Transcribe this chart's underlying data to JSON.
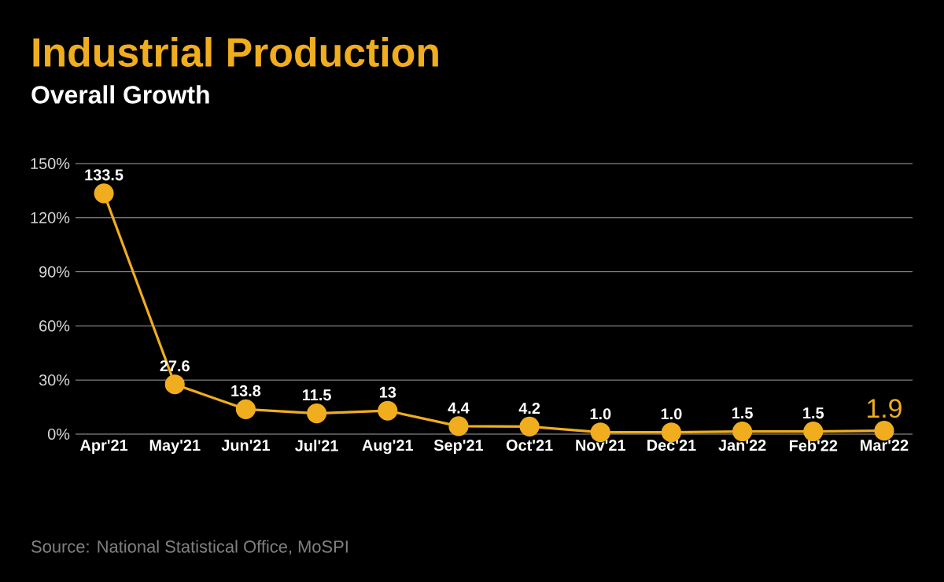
{
  "chart_data": {
    "type": "line",
    "title": "Industrial Production",
    "subtitle": "Overall Growth",
    "categories": [
      "Apr'21",
      "May'21",
      "Jun'21",
      "Jul'21",
      "Aug'21",
      "Sep'21",
      "Oct'21",
      "Nov'21",
      "Dec'21",
      "Jan'22",
      "Feb'22",
      "Mar'22"
    ],
    "series": [
      {
        "color": "#f0ad1e",
        "values": [
          133.5,
          27.6,
          13.8,
          11.5,
          13,
          4.4,
          4.2,
          1.0,
          1.0,
          1.5,
          1.5,
          1.9
        ],
        "value_labels": [
          "133.5",
          "27.6",
          "13.8",
          "11.5",
          "13",
          "4.4",
          "4.2",
          "1.0",
          "1.0",
          "1.5",
          "1.5",
          "1.9"
        ]
      }
    ],
    "ylim": [
      0,
      150
    ],
    "yticks": [
      {
        "value": 0,
        "label": "0%"
      },
      {
        "value": 30,
        "label": "30%"
      },
      {
        "value": 60,
        "label": "60%"
      },
      {
        "value": 90,
        "label": "90%"
      },
      {
        "value": 120,
        "label": "120%"
      },
      {
        "value": 150,
        "label": "150%"
      }
    ],
    "grid": "y",
    "marker": "circle",
    "line_style": "solid",
    "annotations": [
      "Source: National Statistical Office, MoSPI"
    ]
  }
}
